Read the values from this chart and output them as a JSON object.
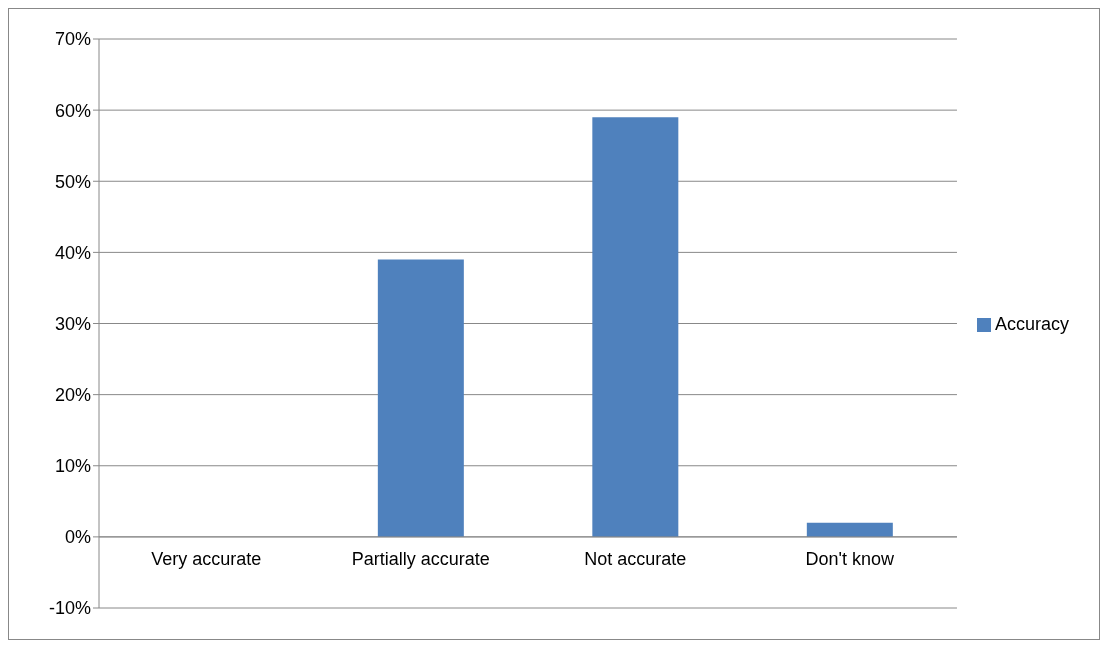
{
  "chart_data": {
    "type": "bar",
    "categories": [
      "Very accurate",
      "Partially accurate",
      "Not accurate",
      "Don't know"
    ],
    "series": [
      {
        "name": "Accuracy",
        "color": "#4f81bd",
        "values": [
          0,
          39,
          59,
          2
        ]
      }
    ],
    "ylim": [
      -10,
      70
    ],
    "yticks": [
      {
        "value": -10,
        "label": "-10%"
      },
      {
        "value": 0,
        "label": "0%"
      },
      {
        "value": 10,
        "label": "10%"
      },
      {
        "value": 20,
        "label": "20%"
      },
      {
        "value": 30,
        "label": "30%"
      },
      {
        "value": 40,
        "label": "40%"
      },
      {
        "value": 50,
        "label": "50%"
      },
      {
        "value": 60,
        "label": "60%"
      },
      {
        "value": 70,
        "label": "70%"
      }
    ],
    "grid": "y",
    "legend": "right"
  }
}
